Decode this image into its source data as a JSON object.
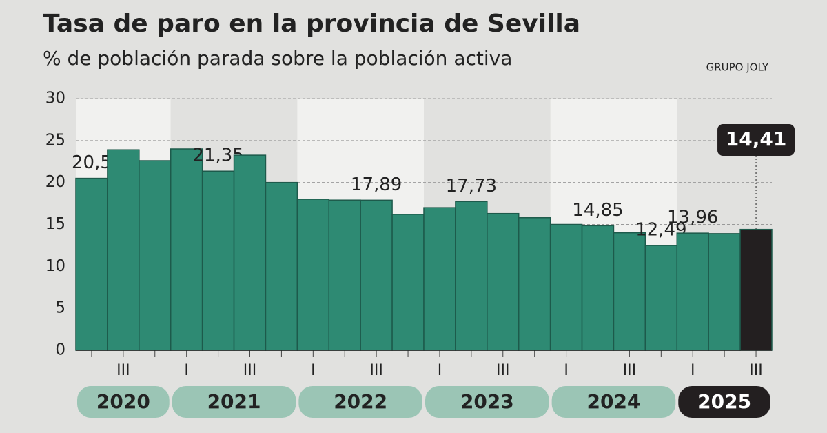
{
  "chart_data": {
    "type": "bar",
    "title": "Tasa de paro en la provincia de Sevilla",
    "subtitle": "% de población parada sobre la población activa",
    "source": "GRUPO JOLY",
    "categories": [
      null,
      "III",
      null,
      "I",
      null,
      "III",
      null,
      "I",
      null,
      "III",
      null,
      "I",
      null,
      "III",
      null,
      "I",
      null,
      "III",
      null,
      "I",
      null,
      "III"
    ],
    "years": [
      "2020",
      "2020",
      "2020",
      "2021",
      "2021",
      "2021",
      "2021",
      "2022",
      "2022",
      "2022",
      "2022",
      "2023",
      "2023",
      "2023",
      "2023",
      "2024",
      "2024",
      "2024",
      "2024",
      "2025",
      "2025",
      "2025"
    ],
    "values": [
      20.5,
      23.9,
      22.6,
      24.0,
      21.35,
      23.25,
      20.0,
      18.0,
      17.9,
      17.89,
      16.2,
      17.0,
      17.73,
      16.3,
      15.8,
      15.0,
      14.85,
      14.0,
      12.49,
      13.96,
      13.9,
      14.41
    ],
    "value_labels": [
      "20,5",
      null,
      null,
      null,
      "21,35",
      null,
      null,
      null,
      null,
      "17,89",
      null,
      null,
      "17,73",
      null,
      null,
      null,
      "14,85",
      null,
      "12,49",
      "13,96",
      null,
      "14,41"
    ],
    "color": "#2e8a73",
    "highlight_color": "#231f20",
    "year_color": "#9bc5b5",
    "ylim": [
      0,
      30
    ],
    "yticks": [
      0,
      5,
      10,
      15,
      20,
      25,
      30
    ],
    "grid": true
  }
}
